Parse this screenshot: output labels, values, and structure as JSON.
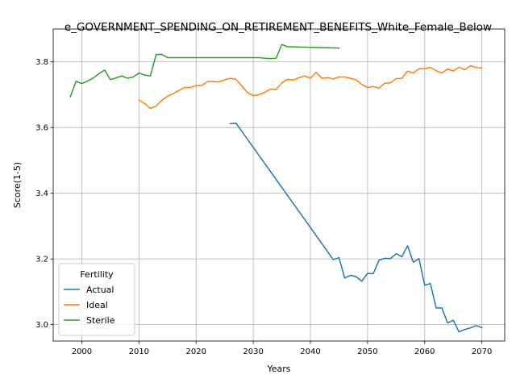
{
  "chart_data": {
    "type": "line",
    "title": "e_GOVERNMENT_SPENDING_ON_RETIREMENT_BENEFITS_White_Female_Below",
    "xlabel": "Years",
    "ylabel": "Score(1-5)",
    "xlim": [
      1995,
      2074
    ],
    "ylim": [
      2.95,
      3.9
    ],
    "xticks": [
      2000,
      2010,
      2020,
      2030,
      2040,
      2050,
      2060,
      2070
    ],
    "yticks": [
      3.0,
      3.2,
      3.4,
      3.6,
      3.8
    ],
    "ytick_labels": [
      "3.0",
      "3.2",
      "3.4",
      "3.6",
      "3.8"
    ],
    "grid": true,
    "legend": {
      "title": "Fertility",
      "position": "lower-left"
    },
    "series": [
      {
        "name": "Actual",
        "color": "#1f77b4",
        "x": [
          2026,
          2027,
          2044,
          2045,
          2046,
          2047,
          2048,
          2049,
          2050,
          2051,
          2052,
          2053,
          2054,
          2055,
          2056,
          2057,
          2058,
          2059,
          2060,
          2061,
          2062,
          2063,
          2064,
          2065,
          2066,
          2067,
          2068,
          2069,
          2070
        ],
        "y": [
          3.612,
          3.613,
          3.198,
          3.204,
          3.142,
          3.15,
          3.146,
          3.132,
          3.156,
          3.155,
          3.196,
          3.202,
          3.201,
          3.216,
          3.207,
          3.24,
          3.19,
          3.201,
          3.12,
          3.125,
          3.051,
          3.051,
          3.005,
          3.013,
          2.978,
          2.985,
          2.99,
          2.997,
          2.991
        ]
      },
      {
        "name": "Ideal",
        "color": "#ff7f0e",
        "x": [
          2010,
          2011,
          2012,
          2013,
          2014,
          2015,
          2016,
          2017,
          2018,
          2019,
          2020,
          2021,
          2022,
          2023,
          2024,
          2025,
          2026,
          2027,
          2028,
          2029,
          2030,
          2031,
          2032,
          2033,
          2034,
          2035,
          2036,
          2037,
          2038,
          2039,
          2040,
          2041,
          2042,
          2043,
          2044,
          2045,
          2046,
          2047,
          2048,
          2049,
          2050,
          2051,
          2052,
          2053,
          2054,
          2055,
          2056,
          2057,
          2058,
          2059,
          2060,
          2061,
          2062,
          2063,
          2064,
          2065,
          2066,
          2067,
          2068,
          2069,
          2070
        ],
        "y": [
          3.684,
          3.673,
          3.658,
          3.665,
          3.683,
          3.695,
          3.703,
          3.713,
          3.722,
          3.722,
          3.728,
          3.728,
          3.74,
          3.74,
          3.739,
          3.745,
          3.75,
          3.747,
          3.727,
          3.706,
          3.697,
          3.7,
          3.707,
          3.717,
          3.716,
          3.736,
          3.747,
          3.745,
          3.752,
          3.757,
          3.75,
          3.768,
          3.75,
          3.752,
          3.748,
          3.754,
          3.754,
          3.75,
          3.745,
          3.731,
          3.722,
          3.725,
          3.72,
          3.735,
          3.736,
          3.749,
          3.75,
          3.772,
          3.766,
          3.779,
          3.779,
          3.783,
          3.773,
          3.766,
          3.778,
          3.772,
          3.784,
          3.776,
          3.788,
          3.783,
          3.781
        ]
      },
      {
        "name": "Sterile",
        "color": "#2ca02c",
        "x": [
          1998,
          1999,
          2000,
          2001,
          2002,
          2003,
          2004,
          2005,
          2006,
          2007,
          2008,
          2009,
          2010,
          2011,
          2012,
          2013,
          2014,
          2015,
          2016,
          2017,
          2018,
          2019,
          2020,
          2021,
          2022,
          2023,
          2024,
          2025,
          2026,
          2027,
          2028,
          2029,
          2030,
          2031,
          2032,
          2033,
          2034,
          2035,
          2036,
          2045
        ],
        "y": [
          3.694,
          3.741,
          3.734,
          3.741,
          3.751,
          3.764,
          3.775,
          3.746,
          3.751,
          3.757,
          3.75,
          3.754,
          3.766,
          3.76,
          3.757,
          3.822,
          3.823,
          3.813,
          3.813,
          3.813,
          3.813,
          3.813,
          3.813,
          3.813,
          3.813,
          3.813,
          3.813,
          3.813,
          3.813,
          3.813,
          3.813,
          3.813,
          3.813,
          3.813,
          3.811,
          3.81,
          3.811,
          3.853,
          3.846,
          3.842
        ]
      }
    ]
  }
}
